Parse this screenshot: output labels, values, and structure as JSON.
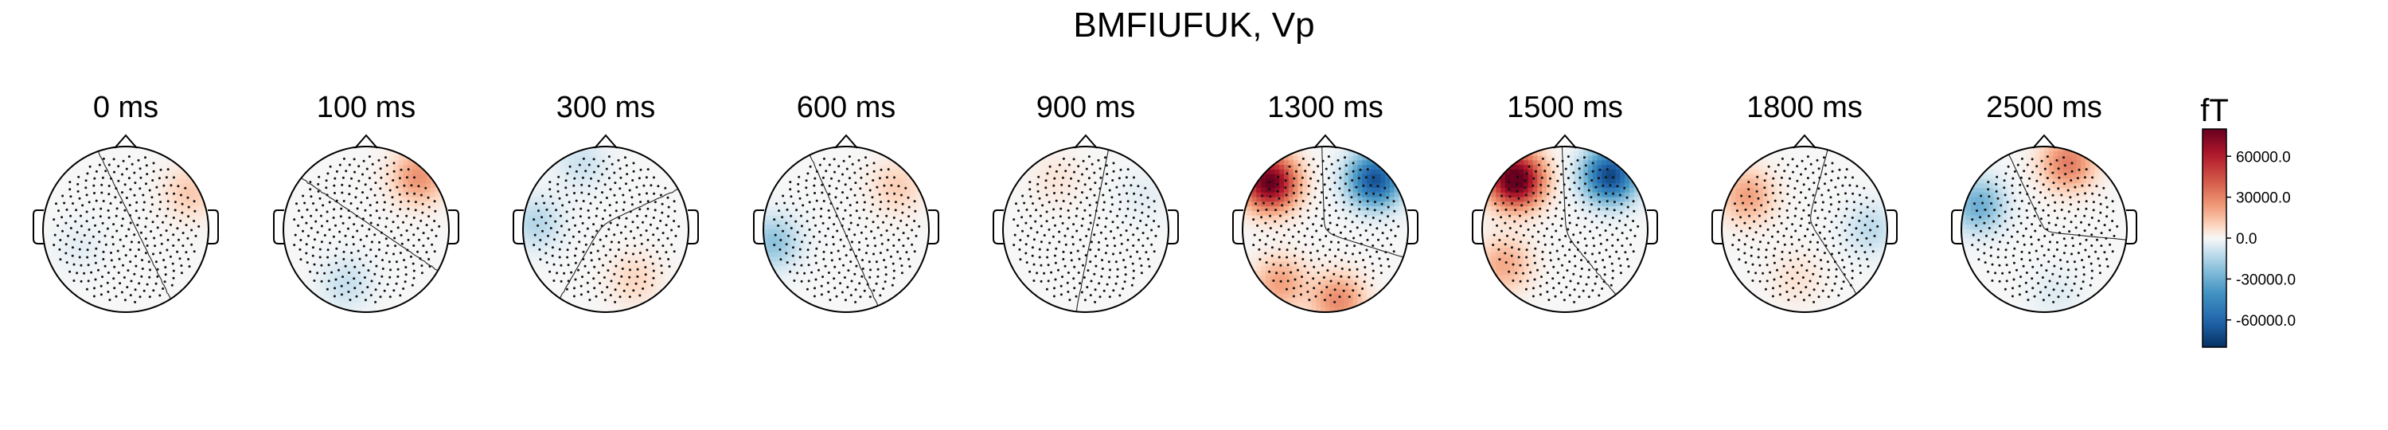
{
  "title": "BMFIUFUK, Vp",
  "chart_data": {
    "type": "heatmap",
    "subtype": "topomap",
    "title": "BMFIUFUK, Vp",
    "panels": [
      {
        "label": "0 ms",
        "time_ms": 0,
        "blobs": [
          {
            "ang": 30,
            "r": 0.9,
            "v": 12000
          },
          {
            "ang": 200,
            "r": 0.6,
            "v": -4000
          }
        ]
      },
      {
        "label": "100 ms",
        "time_ms": 100,
        "blobs": [
          {
            "ang": 45,
            "r": 0.9,
            "v": 26000
          },
          {
            "ang": 250,
            "r": 0.7,
            "v": -10000
          }
        ]
      },
      {
        "label": "300 ms",
        "time_ms": 300,
        "blobs": [
          {
            "ang": 300,
            "r": 0.7,
            "v": 9000
          },
          {
            "ang": 175,
            "r": 0.85,
            "v": -14000
          },
          {
            "ang": 110,
            "r": 0.85,
            "v": -9000
          }
        ]
      },
      {
        "label": "600 ms",
        "time_ms": 600,
        "blobs": [
          {
            "ang": 40,
            "r": 0.8,
            "v": 11000
          },
          {
            "ang": 190,
            "r": 0.9,
            "v": -22000
          }
        ]
      },
      {
        "label": "900 ms",
        "time_ms": 900,
        "blobs": [
          {
            "ang": 120,
            "r": 0.7,
            "v": 5000
          },
          {
            "ang": 30,
            "r": 0.8,
            "v": -4000
          }
        ]
      },
      {
        "label": "1300 ms",
        "time_ms": 1300,
        "blobs": [
          {
            "ang": 140,
            "r": 0.88,
            "v": 82000
          },
          {
            "ang": 45,
            "r": 0.85,
            "v": -68000
          },
          {
            "ang": 230,
            "r": 0.85,
            "v": 22000
          },
          {
            "ang": 280,
            "r": 0.88,
            "v": 28000
          }
        ]
      },
      {
        "label": "1500 ms",
        "time_ms": 1500,
        "blobs": [
          {
            "ang": 135,
            "r": 0.85,
            "v": 90000
          },
          {
            "ang": 50,
            "r": 0.85,
            "v": -72000
          },
          {
            "ang": 210,
            "r": 0.85,
            "v": 20000
          }
        ]
      },
      {
        "label": "1800 ms",
        "time_ms": 1800,
        "blobs": [
          {
            "ang": 150,
            "r": 0.8,
            "v": 22000
          },
          {
            "ang": 0,
            "r": 0.8,
            "v": -12000
          },
          {
            "ang": 260,
            "r": 0.6,
            "v": 6000
          }
        ]
      },
      {
        "label": "2500 ms",
        "time_ms": 2500,
        "blobs": [
          {
            "ang": 70,
            "r": 0.85,
            "v": 32000
          },
          {
            "ang": 160,
            "r": 0.85,
            "v": -30000
          },
          {
            "ang": 280,
            "r": 0.8,
            "v": -5000
          }
        ]
      }
    ],
    "colorbar": {
      "unit": "fT",
      "colormap": "RdBu_r",
      "range": [
        -80000,
        80000
      ],
      "ticks": [
        60000,
        30000,
        0,
        -30000,
        -60000
      ],
      "tick_labels": [
        "60000.0",
        "30000.0",
        "0.0",
        "-30000.0",
        "-60000.0"
      ]
    },
    "sensor_markers": "black dots",
    "contour_level": 0
  }
}
